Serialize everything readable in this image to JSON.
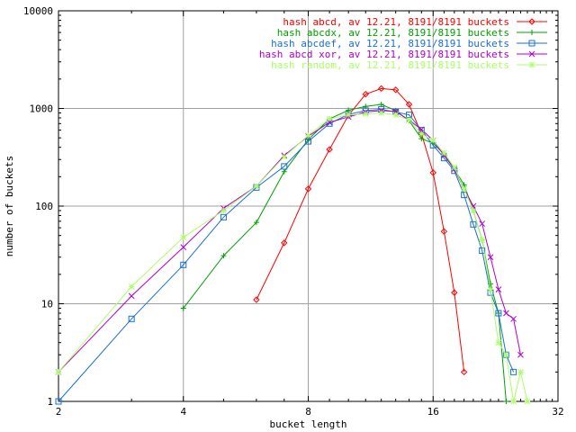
{
  "chart_data": {
    "type": "line",
    "xlabel": "bucket length",
    "ylabel": "number of buckets",
    "x_scale": "log2",
    "y_scale": "log10",
    "xlim": [
      2,
      32
    ],
    "ylim": [
      1,
      10000
    ],
    "x_ticks": [
      2,
      4,
      8,
      16,
      32
    ],
    "x_tick_labels": [
      "2",
      "4",
      "8",
      "16",
      "32"
    ],
    "y_ticks": [
      1,
      10,
      100,
      1000,
      10000
    ],
    "y_tick_labels": [
      "1",
      "10",
      "100",
      "1000",
      "10000"
    ],
    "grid": true,
    "legend_position": "top-right",
    "series": [
      {
        "name": "hash abcd, av 12.21, 8191/8191 buckets",
        "color": "#ff0000",
        "marker": "diamond",
        "points": [
          [
            6,
            11
          ],
          [
            7,
            42
          ],
          [
            8,
            150
          ],
          [
            9,
            380
          ],
          [
            10,
            850
          ],
          [
            11,
            1400
          ],
          [
            12,
            1600
          ],
          [
            13,
            1550
          ],
          [
            14,
            1100
          ],
          [
            15,
            550
          ],
          [
            16,
            220
          ],
          [
            17,
            55
          ],
          [
            18,
            13
          ],
          [
            19,
            2
          ]
        ]
      },
      {
        "name": "hash abcdx, av 12.21, 8191/8191 buckets",
        "color": "#00a000",
        "marker": "plus",
        "points": [
          [
            4,
            9
          ],
          [
            5,
            31
          ],
          [
            6,
            68
          ],
          [
            7,
            225
          ],
          [
            8,
            480
          ],
          [
            9,
            780
          ],
          [
            10,
            960
          ],
          [
            11,
            1050
          ],
          [
            12,
            1100
          ],
          [
            13,
            950
          ],
          [
            14,
            750
          ],
          [
            15,
            490
          ],
          [
            16,
            440
          ],
          [
            17,
            340
          ],
          [
            18,
            240
          ],
          [
            19,
            165
          ],
          [
            20,
            90
          ],
          [
            21,
            45
          ],
          [
            22,
            16
          ],
          [
            23,
            8
          ],
          [
            24,
            1
          ]
        ]
      },
      {
        "name": "hash abcdef, av 12.21, 8191/8191 buckets",
        "color": "#1a6fd1",
        "marker": "box",
        "points": [
          [
            2,
            1
          ],
          [
            3,
            7
          ],
          [
            4,
            25
          ],
          [
            5,
            77
          ],
          [
            6,
            155
          ],
          [
            7,
            255
          ],
          [
            8,
            460
          ],
          [
            9,
            700
          ],
          [
            10,
            870
          ],
          [
            11,
            950
          ],
          [
            12,
            980
          ],
          [
            13,
            920
          ],
          [
            14,
            860
          ],
          [
            15,
            600
          ],
          [
            16,
            420
          ],
          [
            17,
            310
          ],
          [
            18,
            230
          ],
          [
            19,
            130
          ],
          [
            20,
            65
          ],
          [
            21,
            35
          ],
          [
            22,
            13
          ],
          [
            23,
            8
          ],
          [
            24,
            3
          ],
          [
            25,
            2
          ]
        ]
      },
      {
        "name": "hash abcd xor, av 12.21, 8191/8191 buckets",
        "color": "#b000d0",
        "marker": "cross",
        "points": [
          [
            2,
            2
          ],
          [
            3,
            12
          ],
          [
            4,
            38
          ],
          [
            5,
            95
          ],
          [
            6,
            160
          ],
          [
            7,
            330
          ],
          [
            8,
            520
          ],
          [
            9,
            720
          ],
          [
            10,
            820
          ],
          [
            11,
            920
          ],
          [
            12,
            950
          ],
          [
            13,
            930
          ],
          [
            14,
            760
          ],
          [
            15,
            610
          ],
          [
            16,
            470
          ],
          [
            17,
            330
          ],
          [
            18,
            240
          ],
          [
            19,
            150
          ],
          [
            20,
            100
          ],
          [
            21,
            66
          ],
          [
            22,
            30
          ],
          [
            23,
            14
          ],
          [
            24,
            8
          ],
          [
            25,
            7
          ],
          [
            26,
            3
          ]
        ]
      },
      {
        "name": "hash random, av 12.21, 8191/8191 buckets",
        "color": "#aaff66",
        "marker": "star",
        "points": [
          [
            2,
            2
          ],
          [
            3,
            15
          ],
          [
            4,
            48
          ],
          [
            5,
            90
          ],
          [
            6,
            160
          ],
          [
            7,
            320
          ],
          [
            8,
            530
          ],
          [
            9,
            780
          ],
          [
            10,
            860
          ],
          [
            11,
            880
          ],
          [
            12,
            900
          ],
          [
            13,
            860
          ],
          [
            14,
            760
          ],
          [
            15,
            550
          ],
          [
            16,
            470
          ],
          [
            17,
            350
          ],
          [
            18,
            250
          ],
          [
            19,
            150
          ],
          [
            20,
            90
          ],
          [
            21,
            45
          ],
          [
            22,
            14
          ],
          [
            23,
            4
          ],
          [
            24,
            3
          ],
          [
            25,
            1
          ],
          [
            26,
            2
          ],
          [
            27,
            1
          ]
        ]
      }
    ]
  }
}
